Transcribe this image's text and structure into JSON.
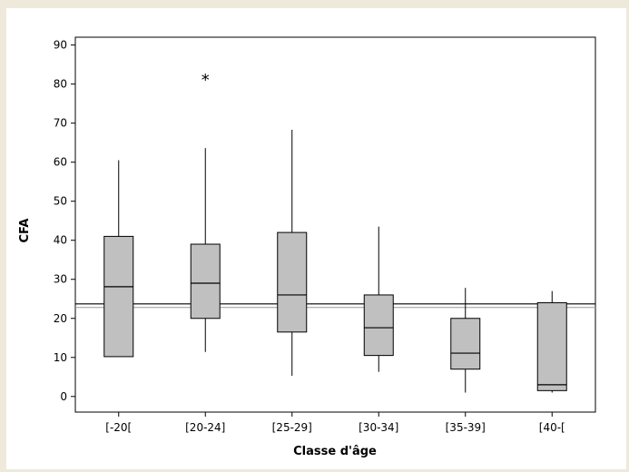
{
  "chart_data": {
    "type": "boxplot",
    "title": "",
    "xlabel": "Classe d'âge",
    "ylabel": "CFA",
    "ylim": [
      -4,
      92
    ],
    "yticks": [
      0,
      10,
      20,
      30,
      40,
      50,
      60,
      70,
      80,
      90
    ],
    "grid": false,
    "legend": "none",
    "colors": {
      "box_fill": "#c0c0c0",
      "stroke": "#000000",
      "ref_line_dark": "#000000",
      "ref_line_light": "#9a9a9a"
    },
    "reference_lines": [
      {
        "y": 23.7,
        "style": "dark"
      },
      {
        "y": 22.8,
        "style": "light"
      }
    ],
    "categories": [
      "[-20[",
      "[20-24]",
      "[25-29]",
      "[30-34]",
      "[35-39]",
      "[40-["
    ],
    "boxes": [
      {
        "category": "[-20[",
        "min": 10.2,
        "q1": 10.2,
        "median": 28.1,
        "q3": 41.0,
        "max": 60.5,
        "outliers": []
      },
      {
        "category": "[20-24]",
        "min": 11.4,
        "q1": 20.0,
        "median": 29.0,
        "q3": 39.0,
        "max": 63.6,
        "outliers": [
          81.8
        ]
      },
      {
        "category": "[25-29]",
        "min": 5.3,
        "q1": 16.5,
        "median": 26.0,
        "q3": 42.0,
        "max": 68.3,
        "outliers": []
      },
      {
        "category": "[30-34]",
        "min": 6.3,
        "q1": 10.5,
        "median": 17.6,
        "q3": 26.0,
        "max": 43.5,
        "outliers": []
      },
      {
        "category": "[35-39]",
        "min": 1.0,
        "q1": 7.0,
        "median": 11.1,
        "q3": 20.0,
        "max": 27.8,
        "outliers": []
      },
      {
        "category": "[40-[",
        "min": 1.0,
        "q1": 1.5,
        "median": 3.0,
        "q3": 24.0,
        "max": 27.0,
        "outliers": []
      }
    ]
  }
}
